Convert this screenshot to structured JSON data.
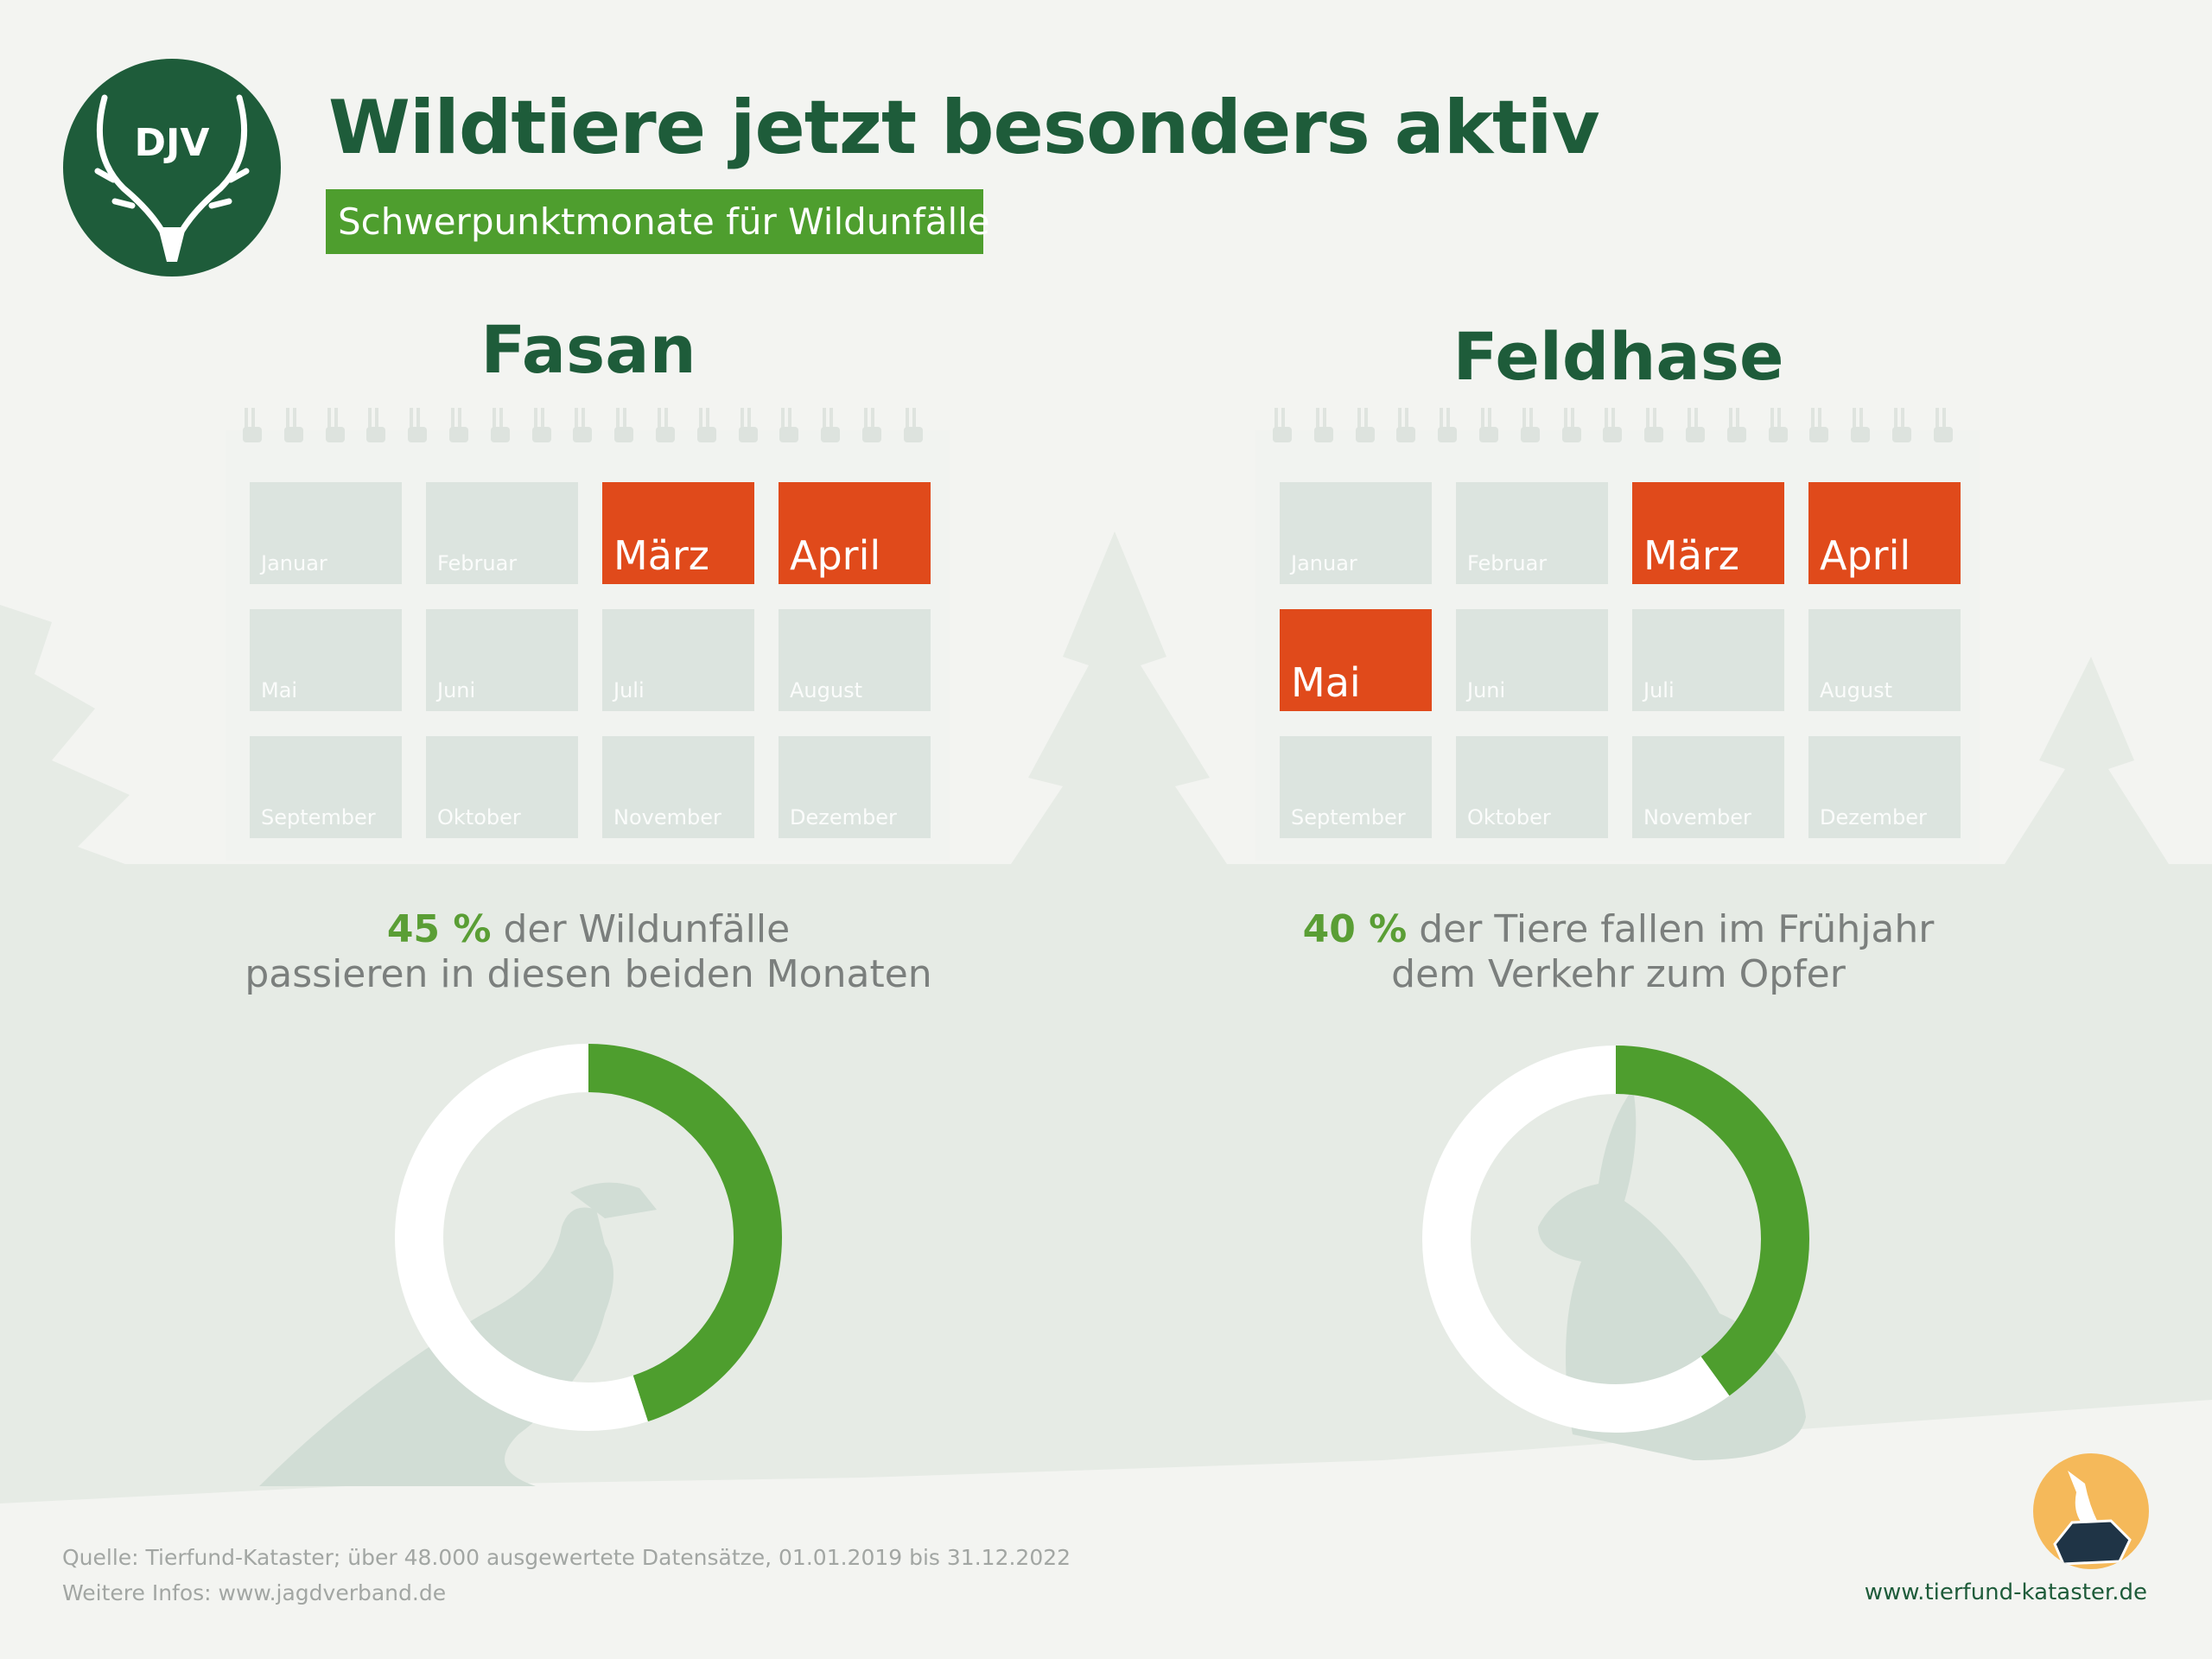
{
  "header": {
    "logo_text": "DJV",
    "title": "Wildtiere jetzt besonders aktiv",
    "subtitle": "Schwerpunktmonate für Wildunfälle"
  },
  "colors": {
    "dark_green": "#1e5c3a",
    "green": "#4e9e2e",
    "highlight": "#e04a1b",
    "cell": "#dce4df",
    "tierfund_orange": "#f5b95a"
  },
  "months": [
    "Januar",
    "Februar",
    "März",
    "April",
    "Mai",
    "Juni",
    "Juli",
    "August",
    "September",
    "Oktober",
    "November",
    "Dezember"
  ],
  "panels": [
    {
      "animal": "Fasan",
      "highlighted_months": [
        "März",
        "April"
      ],
      "stat_value": "45 %",
      "stat_line1": " der Wildunfälle",
      "stat_line2": "passieren in diesen beiden Monaten",
      "silhouette_icon": "pheasant-icon"
    },
    {
      "animal": "Feldhase",
      "highlighted_months": [
        "März",
        "April",
        "Mai"
      ],
      "stat_value": "40 %",
      "stat_line1": " der Tiere fallen im Frühjahr",
      "stat_line2": "dem Verkehr zum Opfer",
      "silhouette_icon": "hare-icon"
    }
  ],
  "chart_data": [
    {
      "type": "pie",
      "variant": "donut",
      "title": "Fasan",
      "values": [
        45,
        55
      ],
      "colors": [
        "#4e9e2e",
        "#ffffff"
      ]
    },
    {
      "type": "pie",
      "variant": "donut",
      "title": "Feldhase",
      "values": [
        40,
        60
      ],
      "colors": [
        "#4e9e2e",
        "#ffffff"
      ]
    }
  ],
  "footer": {
    "source": "Quelle: Tierfund-Kataster; über 48.000 ausgewertete Datensätze, 01.01.2019 bis 31.12.2022",
    "info": "Weitere Infos: www.jagdverband.de",
    "tierfund_url": "www.tierfund-kataster.de",
    "tierfund_logo_icon": "deer-on-map-icon"
  }
}
